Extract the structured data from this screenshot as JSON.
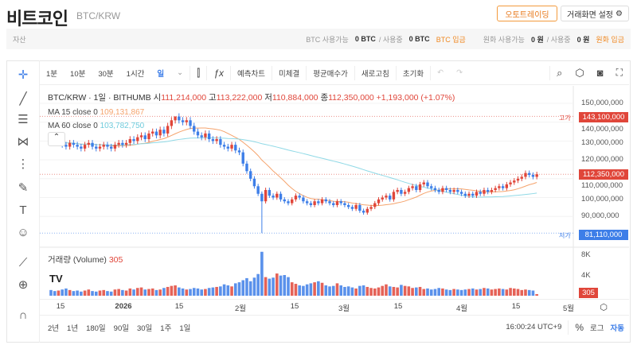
{
  "header": {
    "title": "비트코인",
    "pair": "BTC/KRW",
    "auto_trading": "오토트레이딩",
    "screen_settings": "거래화면 설정"
  },
  "assets": {
    "label": "자산",
    "btc_available_label": "BTC 사용가능",
    "btc_available": "0 BTC",
    "slash_using": "/ 사용중",
    "btc_using": "0 BTC",
    "btc_deposit": "BTC 입금",
    "krw_available_label": "원화 사용가능",
    "krw_available": "0 원",
    "krw_using": "0 원",
    "krw_deposit": "원화 입금"
  },
  "toolbar": {
    "intervals": [
      "1분",
      "10분",
      "30분",
      "1시간",
      "일"
    ],
    "indicators": "예측차트",
    "unfilled": "미체결",
    "avg_price": "평균매수가",
    "refresh": "새로고침",
    "reset": "초기화"
  },
  "legend": {
    "symbol": "BTC/KRW · 1일 · BITHUMB",
    "o_label": "시",
    "open": "111,214,000",
    "h_label": "고",
    "high": "113,222,000",
    "l_label": "저",
    "low": "110,884,000",
    "c_label": "종",
    "close": "112,350,000",
    "change": "+1,193,000 (+1.07%)",
    "ma15_label": "MA 15 close 0",
    "ma15": "109,131,867",
    "ma60_label": "MA 60 close 0",
    "ma60": "103,782,750",
    "volume_label": "거래량 (Volume)",
    "volume": "305"
  },
  "price_axis": {
    "ticks": [
      "150,000,000",
      "140,000,000",
      "130,000,000",
      "120,000,000",
      "110,000,000",
      "100,000,000",
      "90,000,000"
    ],
    "high_label": "고가",
    "high_tag": "143,100,000",
    "last_tag": "112,350,000",
    "low_label": "저가",
    "low_tag": "81,110,000",
    "vol_ticks": [
      "8K",
      "4K"
    ],
    "vol_tag": "305"
  },
  "time_axis": [
    "15",
    "2026",
    "15",
    "2월",
    "15",
    "3월",
    "15",
    "4월",
    "15",
    "5월"
  ],
  "bottom": {
    "ranges": [
      "2년",
      "1년",
      "180일",
      "90일",
      "30일",
      "1주",
      "1일"
    ],
    "clock": "16:00:24 UTC+9",
    "percent": "%",
    "log": "로그",
    "auto": "자동"
  },
  "colors": {
    "up": "#e0463a",
    "down": "#3d7ee8",
    "ma15": "#f5a36c",
    "ma60": "#8fd9e6",
    "accent": "#f08a24"
  },
  "chart_data": {
    "type": "candlestick",
    "start": "2025-12-12",
    "ylim": [
      75000000,
      155000000
    ],
    "close": [
      131000000,
      129000000,
      130000000,
      128000000,
      127000000,
      129000000,
      128000000,
      127000000,
      126000000,
      128000000,
      129000000,
      127000000,
      126000000,
      127000000,
      128000000,
      127000000,
      126000000,
      128000000,
      129000000,
      128000000,
      129000000,
      131000000,
      130000000,
      132000000,
      133000000,
      131000000,
      134000000,
      135000000,
      133000000,
      136000000,
      134000000,
      138000000,
      141000000,
      143000000,
      141000000,
      140000000,
      141000000,
      138000000,
      135000000,
      133000000,
      132000000,
      134000000,
      131000000,
      130000000,
      131000000,
      128000000,
      127000000,
      126000000,
      128000000,
      125000000,
      124000000,
      118000000,
      114000000,
      110000000,
      106000000,
      102000000,
      98000000,
      104000000,
      101000000,
      100000000,
      102000000,
      99000000,
      98000000,
      97000000,
      99000000,
      101000000,
      100000000,
      98000000,
      97000000,
      96000000,
      98000000,
      97000000,
      99000000,
      98000000,
      97000000,
      96000000,
      98000000,
      97000000,
      96000000,
      95000000,
      94000000,
      96000000,
      93000000,
      92000000,
      94000000,
      95000000,
      97000000,
      99000000,
      100000000,
      101000000,
      99000000,
      103000000,
      104000000,
      102000000,
      103000000,
      105000000,
      106000000,
      104000000,
      107000000,
      108000000,
      106000000,
      105000000,
      104000000,
      103000000,
      105000000,
      104000000,
      103000000,
      104000000,
      103000000,
      102000000,
      101000000,
      102000000,
      101000000,
      103000000,
      102000000,
      104000000,
      103000000,
      104000000,
      105000000,
      106000000,
      105000000,
      107000000,
      108000000,
      109000000,
      110000000,
      111000000,
      113000000,
      112000000,
      111000000,
      112350000
    ],
    "volume": [
      1100,
      900,
      1000,
      1200,
      1400,
      1100,
      900,
      1000,
      800,
      1000,
      1200,
      900,
      800,
      1000,
      1100,
      900,
      800,
      1200,
      1300,
      1100,
      1000,
      1400,
      1200,
      1500,
      1600,
      1200,
      1300,
      1400,
      1100,
      1200,
      1500,
      1700,
      1900,
      2000,
      1600,
      1400,
      1200,
      1300,
      1500,
      1400,
      1200,
      1300,
      1500,
      1600,
      1700,
      1800,
      2200,
      2000,
      1800,
      2400,
      2600,
      3000,
      3400,
      2800,
      3500,
      4200,
      8500,
      3600,
      3300,
      3500,
      4300,
      3900,
      4000,
      3600,
      2600,
      2300,
      2000,
      1900,
      2200,
      2400,
      2600,
      2800,
      2500,
      2000,
      1800,
      1900,
      2400,
      2000,
      1700,
      1800,
      1600,
      1400,
      1900,
      2000,
      1700,
      1500,
      1400,
      1600,
      1900,
      2200,
      1800,
      1700,
      1600,
      2100,
      1900,
      1800,
      1500,
      1600,
      1700,
      1300,
      1400,
      1200,
      1300,
      1500,
      1400,
      1200,
      1100,
      1300,
      1200,
      1100,
      1200,
      1300,
      1400,
      1200,
      1300,
      1500,
      1400,
      1200,
      1300,
      1400,
      1300,
      1200,
      1500,
      1400,
      1300,
      1100,
      1200,
      1100,
      1000,
      305
    ]
  }
}
